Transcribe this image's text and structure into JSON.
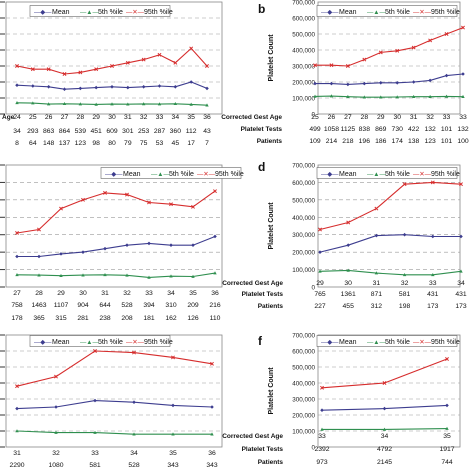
{
  "colors": {
    "mean": "#3d3d8f",
    "p5": "#2f8f4f",
    "p95": "#d62d2d",
    "grid": "#9a9a9a"
  },
  "legend_markers": {
    "mean": "—◆—",
    "p5": "—▲—",
    "p95": "—✕—"
  },
  "chart_data": [
    {
      "panel": "a",
      "panel_label": "",
      "type": "line",
      "ylabel": "",
      "ylim": [
        0,
        700000
      ],
      "grid": true,
      "legend": "top",
      "yticks": [],
      "legend_entries": [
        "Mean",
        "5th %ile",
        "95th %ile"
      ],
      "table": [
        {
          "label": "Age",
          "values": [
            "24",
            "25",
            "26",
            "27",
            "28",
            "29",
            "30",
            "31",
            "32",
            "33",
            "34",
            "35",
            "36"
          ]
        },
        {
          "label": "",
          "values": [
            "34",
            "293",
            "863",
            "864",
            "539",
            "451",
            "609",
            "301",
            "253",
            "287",
            "360",
            "112",
            "43"
          ]
        },
        {
          "label": "",
          "values": [
            "8",
            "64",
            "148",
            "137",
            "123",
            "98",
            "80",
            "79",
            "75",
            "53",
            "45",
            "17",
            "7"
          ]
        }
      ],
      "series": [
        {
          "name": "Mean",
          "key": "mean",
          "values": [
            180000,
            175000,
            170000,
            155000,
            160000,
            165000,
            170000,
            165000,
            170000,
            175000,
            170000,
            200000,
            160000
          ]
        },
        {
          "name": "5th %ile",
          "key": "p5",
          "values": [
            70000,
            68000,
            62000,
            64000,
            62000,
            60000,
            62000,
            61000,
            63000,
            62000,
            64000,
            60000,
            55000
          ]
        },
        {
          "name": "95th %ile",
          "key": "p95",
          "values": [
            300000,
            280000,
            280000,
            250000,
            260000,
            280000,
            300000,
            320000,
            340000,
            370000,
            320000,
            410000,
            300000
          ]
        }
      ]
    },
    {
      "panel": "b",
      "panel_label": "b",
      "type": "line",
      "ylabel": "Platelet Count",
      "ylim": [
        0,
        700000
      ],
      "grid": true,
      "legend": "top",
      "yticks": [
        "0",
        "100,000",
        "200,000",
        "300,000",
        "400,000",
        "500,000",
        "600,000",
        "700,000"
      ],
      "legend_entries": [
        "Mean",
        "5th %ile",
        "95th %ile"
      ],
      "table": [
        {
          "label": "Corrected Gest Age",
          "values": [
            "25",
            "26",
            "27",
            "28",
            "29",
            "30",
            "31",
            "32",
            "33",
            "33"
          ]
        },
        {
          "label": "Platelet Tests",
          "values": [
            "499",
            "1058",
            "1125",
            "838",
            "869",
            "730",
            "422",
            "132",
            "101",
            "132"
          ]
        },
        {
          "label": "Patients",
          "values": [
            "109",
            "214",
            "218",
            "196",
            "186",
            "174",
            "138",
            "123",
            "101",
            "100"
          ]
        }
      ],
      "series": [
        {
          "name": "Mean",
          "key": "mean",
          "values": [
            190000,
            190000,
            185000,
            190000,
            195000,
            195000,
            200000,
            210000,
            240000,
            250000
          ]
        },
        {
          "name": "5th %ile",
          "key": "p5",
          "values": [
            110000,
            112000,
            108000,
            105000,
            105000,
            106000,
            108000,
            108000,
            110000,
            108000
          ]
        },
        {
          "name": "95th %ile",
          "key": "p95",
          "values": [
            305000,
            305000,
            300000,
            340000,
            385000,
            395000,
            415000,
            460000,
            500000,
            540000
          ]
        }
      ]
    },
    {
      "panel": "c",
      "panel_label": "",
      "type": "line",
      "ylabel": "",
      "ylim": [
        0,
        700000
      ],
      "grid": true,
      "legend": "top",
      "yticks": [],
      "legend_entries": [
        "Mean",
        "5th %ile",
        "95th %ile"
      ],
      "table": [
        {
          "label": "",
          "values": [
            "27",
            "28",
            "29",
            "30",
            "31",
            "32",
            "33",
            "34",
            "35",
            "36"
          ]
        },
        {
          "label": "",
          "values": [
            "758",
            "1463",
            "1107",
            "904",
            "644",
            "528",
            "394",
            "310",
            "209",
            "216"
          ]
        },
        {
          "label": "",
          "values": [
            "178",
            "365",
            "315",
            "281",
            "238",
            "208",
            "181",
            "162",
            "126",
            "110"
          ]
        }
      ],
      "series": [
        {
          "name": "Mean",
          "key": "mean",
          "values": [
            175000,
            175000,
            190000,
            200000,
            220000,
            240000,
            250000,
            240000,
            240000,
            290000
          ]
        },
        {
          "name": "5th %ile",
          "key": "p5",
          "values": [
            70000,
            68000,
            65000,
            68000,
            70000,
            67000,
            55000,
            62000,
            60000,
            80000
          ]
        },
        {
          "name": "95th %ile",
          "key": "p95",
          "values": [
            310000,
            330000,
            450000,
            500000,
            540000,
            530000,
            485000,
            475000,
            460000,
            550000
          ]
        }
      ]
    },
    {
      "panel": "d",
      "panel_label": "d",
      "type": "line",
      "ylabel": "Platelet Count",
      "ylim": [
        0,
        700000
      ],
      "grid": true,
      "legend": "top",
      "yticks": [
        "0",
        "100,000",
        "200,000",
        "300,000",
        "400,000",
        "500,000",
        "600,000",
        "700,000"
      ],
      "legend_entries": [
        "Mean",
        "5th %ile",
        "95th %ile"
      ],
      "table": [
        {
          "label": "Corrected Gest Age",
          "values": [
            "29",
            "30",
            "31",
            "32",
            "33",
            "34"
          ]
        },
        {
          "label": "Platelet Tests",
          "values": [
            "765",
            "1361",
            "871",
            "581",
            "431",
            "431"
          ]
        },
        {
          "label": "Patients",
          "values": [
            "227",
            "455",
            "312",
            "198",
            "173",
            "173"
          ]
        }
      ],
      "series": [
        {
          "name": "Mean",
          "key": "mean",
          "values": [
            200000,
            240000,
            295000,
            300000,
            290000,
            290000
          ]
        },
        {
          "name": "5th %ile",
          "key": "p5",
          "values": [
            90000,
            95000,
            80000,
            70000,
            70000,
            90000
          ]
        },
        {
          "name": "95th %ile",
          "key": "p95",
          "values": [
            330000,
            370000,
            450000,
            590000,
            600000,
            590000
          ]
        }
      ]
    },
    {
      "panel": "e",
      "panel_label": "",
      "type": "line",
      "ylabel": "",
      "ylim": [
        0,
        700000
      ],
      "grid": true,
      "legend": "top",
      "yticks": [],
      "legend_entries": [
        "Mean",
        "5th %ile",
        "95th %ile"
      ],
      "table": [
        {
          "label": "",
          "values": [
            "31",
            "32",
            "33",
            "34",
            "35",
            "36"
          ]
        },
        {
          "label": "",
          "values": [
            "2290",
            "1080",
            "581",
            "528",
            "343",
            "343"
          ]
        },
        {
          "label": "",
          "values": [
            "893",
            "489",
            "302",
            "269",
            "173",
            "173"
          ]
        }
      ],
      "series": [
        {
          "name": "Mean",
          "key": "mean",
          "values": [
            240000,
            250000,
            290000,
            280000,
            260000,
            250000
          ]
        },
        {
          "name": "5th %ile",
          "key": "p5",
          "values": [
            100000,
            90000,
            90000,
            80000,
            80000,
            80000
          ]
        },
        {
          "name": "95th %ile",
          "key": "p95",
          "values": [
            380000,
            440000,
            600000,
            590000,
            560000,
            520000
          ]
        }
      ]
    },
    {
      "panel": "f",
      "panel_label": "f",
      "type": "line",
      "ylabel": "Platelet Count",
      "ylim": [
        0,
        700000
      ],
      "grid": true,
      "legend": "top",
      "yticks": [
        "0",
        "100,000",
        "200,000",
        "300,000",
        "400,000",
        "500,000",
        "600,000",
        "700,000"
      ],
      "legend_entries": [
        "Mean",
        "5th %ile",
        "95th %ile"
      ],
      "table": [
        {
          "label": "Corrected Gest Age",
          "values": [
            "33",
            "34",
            "35"
          ]
        },
        {
          "label": "Platelet Tests",
          "values": [
            "2392",
            "4792",
            "1917"
          ]
        },
        {
          "label": "Patients",
          "values": [
            "973",
            "2145",
            "744"
          ]
        }
      ],
      "series": [
        {
          "name": "Mean",
          "key": "mean",
          "values": [
            230000,
            240000,
            260000
          ]
        },
        {
          "name": "5th %ile",
          "key": "p5",
          "values": [
            110000,
            110000,
            115000
          ]
        },
        {
          "name": "95th %ile",
          "key": "p95",
          "values": [
            370000,
            400000,
            550000
          ]
        }
      ]
    }
  ]
}
